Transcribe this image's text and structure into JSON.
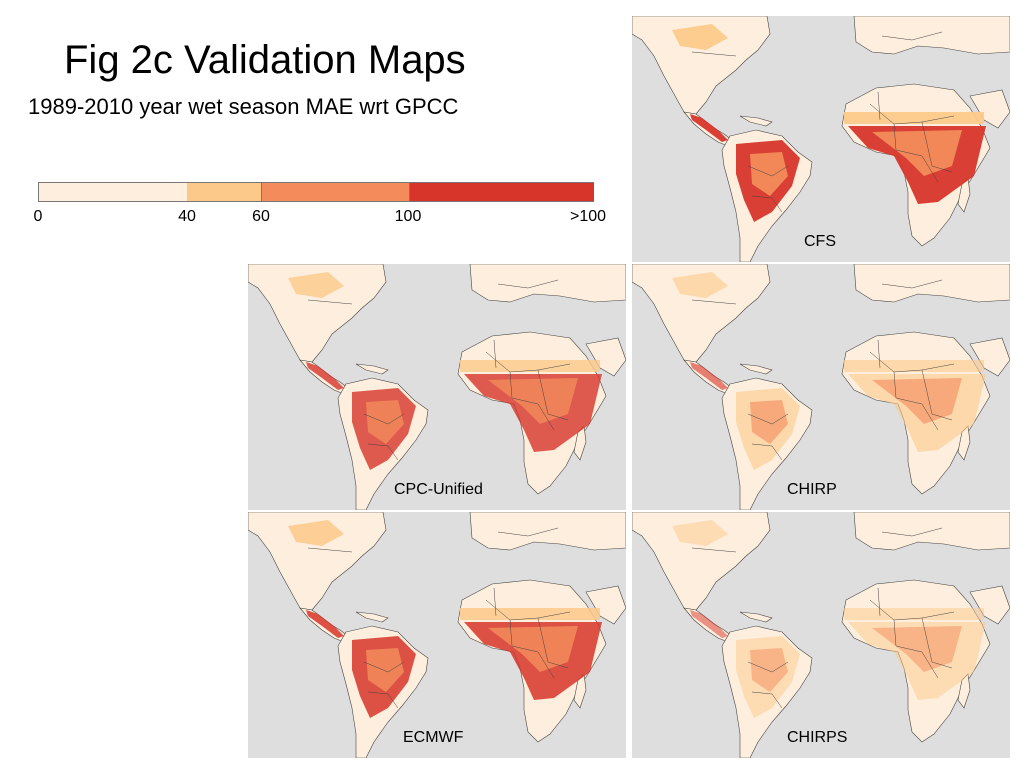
{
  "slide": {
    "title": "Fig 2c Validation Maps",
    "subtitle": "1989-2010 year wet season MAE wrt GPCC"
  },
  "legend": {
    "bins": [
      {
        "from": 0,
        "to": 40,
        "color": "#fdeedd"
      },
      {
        "from": 40,
        "to": 60,
        "color": "#fdc98a"
      },
      {
        "from": 60,
        "to": 100,
        "color": "#f38b5b"
      },
      {
        "from": 100,
        "to": 140,
        "color": "#d7352a"
      }
    ],
    "tick_labels": [
      "0",
      "40",
      "60",
      "100",
      ">100"
    ]
  },
  "map_colors": {
    "ocean": "#dedede",
    "land_low": "#fdeedd",
    "land_mid": "#fdc98a",
    "land_high": "#f38b5b",
    "land_max": "#d7352a",
    "border": "#444444"
  },
  "panels": [
    {
      "label": "CFS",
      "level": 0.95
    },
    {
      "label": "CPC-Unified",
      "level": 0.8
    },
    {
      "label": "CHIRP",
      "level": 0.6
    },
    {
      "label": "ECMWF",
      "level": 0.85
    },
    {
      "label": "CHIRPS",
      "level": 0.5
    }
  ]
}
